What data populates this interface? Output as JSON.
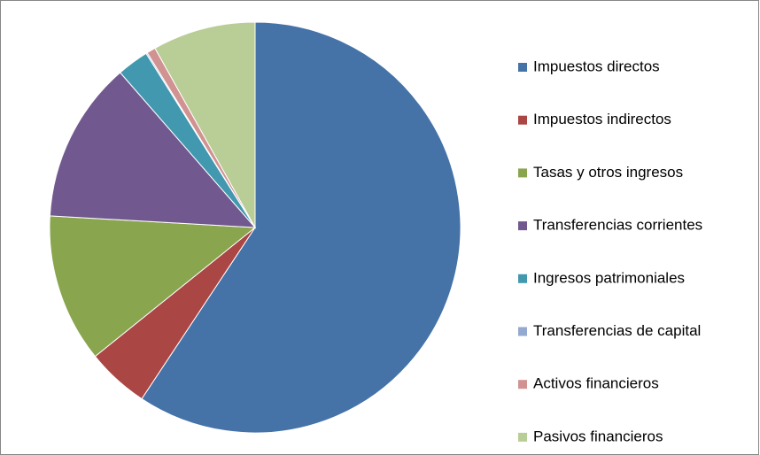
{
  "chart_data": {
    "type": "pie",
    "legend": "right",
    "categories": [
      "Impuestos directos",
      "Impuestos indirectos",
      "Tasas y otros ingresos",
      "Transferencias corrientes",
      "Ingresos patrimoniales",
      "Transferencias de capital",
      "Activos financieros",
      "Pasivos financieros"
    ],
    "values": [
      59.3,
      4.9,
      11.7,
      12.7,
      2.5,
      0.1,
      0.7,
      8.1
    ],
    "colors": [
      "#4572a7",
      "#aa4643",
      "#89a54e",
      "#71588f",
      "#4198af",
      "#93a9cf",
      "#d19392",
      "#b9cd96"
    ]
  }
}
